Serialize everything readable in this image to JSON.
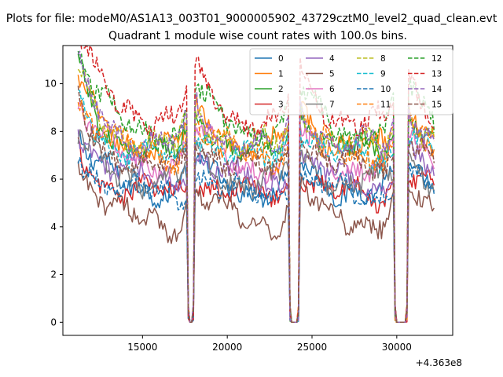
{
  "chart_data": {
    "type": "line",
    "suptitle": "Plots for file: modeM0/AS1A13_003T01_9000005902_43729cztM0_level2_quad_clean.evt",
    "title": "Quadrant 1 module wise count rates with 100.0s bins.",
    "xlabel": "",
    "ylabel": "",
    "x_offset_label": "+4.363e8",
    "xlim": [
      10300,
      33300
    ],
    "ylim": [
      -0.55,
      11.6
    ],
    "x_ticks": [
      15000,
      20000,
      25000,
      30000
    ],
    "x_tick_labels": [
      "15000",
      "20000",
      "25000",
      "30000"
    ],
    "y_ticks": [
      0,
      2,
      4,
      6,
      8,
      10
    ],
    "y_tick_labels": [
      "0",
      "2",
      "4",
      "6",
      "8",
      "10"
    ],
    "grid": false,
    "legend_position": "top-right",
    "legend_columns": 4,
    "x_range": [
      11200,
      32200
    ],
    "bin_size": 100,
    "gaps": [
      [
        17700,
        18000
      ],
      [
        23700,
        24200
      ],
      [
        29900,
        30600
      ]
    ],
    "series": [
      {
        "name": "0",
        "color": "#1f77b4",
        "dash": "solid",
        "base": 5.6,
        "hump": 1.4,
        "trend": -0.2
      },
      {
        "name": "1",
        "color": "#ff7f0e",
        "dash": "solid",
        "base": 7.2,
        "hump": 2.0,
        "trend": 0.0
      },
      {
        "name": "2",
        "color": "#2ca02c",
        "dash": "solid",
        "base": 7.0,
        "hump": 2.4,
        "trend": 0.1
      },
      {
        "name": "3",
        "color": "#d62728",
        "dash": "solid",
        "base": 5.3,
        "hump": 1.3,
        "trend": -0.1
      },
      {
        "name": "4",
        "color": "#9467bd",
        "dash": "solid",
        "base": 6.0,
        "hump": 1.5,
        "trend": -0.3
      },
      {
        "name": "5",
        "color": "#8c564b",
        "dash": "solid",
        "base": 4.2,
        "hump": 1.6,
        "trend": 0.0
      },
      {
        "name": "6",
        "color": "#e377c2",
        "dash": "solid",
        "base": 6.6,
        "hump": 1.8,
        "trend": -0.2
      },
      {
        "name": "7",
        "color": "#7f7f7f",
        "dash": "solid",
        "base": 5.9,
        "hump": 1.3,
        "trend": -0.1
      },
      {
        "name": "8",
        "color": "#bcbd22",
        "dash": "dashed",
        "base": 7.4,
        "hump": 2.0,
        "trend": -0.2
      },
      {
        "name": "9",
        "color": "#17becf",
        "dash": "dashed",
        "base": 6.8,
        "hump": 1.9,
        "trend": -0.1
      },
      {
        "name": "10",
        "color": "#1f77b4",
        "dash": "dashed",
        "base": 5.4,
        "hump": 1.2,
        "trend": -0.2
      },
      {
        "name": "11",
        "color": "#ff7f0e",
        "dash": "dashed",
        "base": 7.0,
        "hump": 1.7,
        "trend": 0.0
      },
      {
        "name": "12",
        "color": "#2ca02c",
        "dash": "dashed",
        "base": 7.9,
        "hump": 2.4,
        "trend": 0.0
      },
      {
        "name": "13",
        "color": "#d62728",
        "dash": "dashed",
        "base": 8.5,
        "hump": 2.5,
        "trend": -0.3
      },
      {
        "name": "14",
        "color": "#9467bd",
        "dash": "dashed",
        "base": 7.4,
        "hump": 2.2,
        "trend": -0.2
      },
      {
        "name": "15",
        "color": "#8c564b",
        "dash": "dashed",
        "base": 6.4,
        "hump": 2.0,
        "trend": -0.1
      }
    ]
  }
}
